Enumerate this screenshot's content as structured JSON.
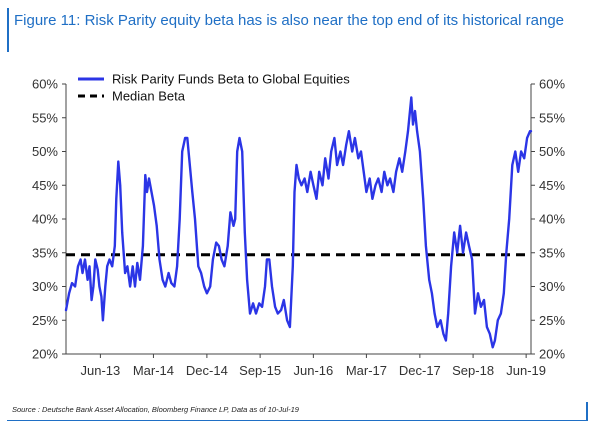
{
  "figure": {
    "title": "Figure 11: Risk Parity equity beta has is also near the top end of its historical range",
    "source": "Source : Deutsche Bank Asset Allocation, Bloomberg Finance LP, Data as of 10-Jul-19"
  },
  "colors": {
    "accent": "#1f6fc5",
    "series_line": "#2b35e6",
    "median_line": "#000000"
  },
  "chart_data": {
    "type": "line",
    "title": "",
    "xlabel": "",
    "ylabel": "",
    "x_ticks": [
      "Jun-13",
      "Mar-14",
      "Dec-14",
      "Sep-15",
      "Jun-16",
      "Mar-17",
      "Dec-17",
      "Sep-18",
      "Jun-19"
    ],
    "y_ticks": [
      "20%",
      "25%",
      "30%",
      "35%",
      "40%",
      "45%",
      "50%",
      "55%",
      "60%"
    ],
    "ylim": [
      0.2,
      0.6
    ],
    "xlim": [
      "2012-12-20",
      "2019-07-10"
    ],
    "left_axis": true,
    "right_axis": true,
    "grid": false,
    "legend_position": "top-left",
    "series": [
      {
        "name": "Risk Parity Funds Beta to Global Equities",
        "style": "solid",
        "points": [
          [
            "2012-12-20",
            0.265
          ],
          [
            "2013-01-05",
            0.29
          ],
          [
            "2013-01-20",
            0.305
          ],
          [
            "2013-02-05",
            0.3
          ],
          [
            "2013-02-20",
            0.33
          ],
          [
            "2013-03-05",
            0.34
          ],
          [
            "2013-03-15",
            0.32
          ],
          [
            "2013-03-28",
            0.34
          ],
          [
            "2013-04-10",
            0.31
          ],
          [
            "2013-04-20",
            0.33
          ],
          [
            "2013-05-01",
            0.28
          ],
          [
            "2013-05-10",
            0.3
          ],
          [
            "2013-05-20",
            0.34
          ],
          [
            "2013-06-01",
            0.325
          ],
          [
            "2013-06-10",
            0.3
          ],
          [
            "2013-06-20",
            0.285
          ],
          [
            "2013-06-28",
            0.25
          ],
          [
            "2013-07-10",
            0.3
          ],
          [
            "2013-07-20",
            0.33
          ],
          [
            "2013-08-01",
            0.34
          ],
          [
            "2013-08-15",
            0.33
          ],
          [
            "2013-08-28",
            0.36
          ],
          [
            "2013-09-05",
            0.43
          ],
          [
            "2013-09-15",
            0.485
          ],
          [
            "2013-09-25",
            0.45
          ],
          [
            "2013-10-05",
            0.38
          ],
          [
            "2013-10-20",
            0.32
          ],
          [
            "2013-11-01",
            0.33
          ],
          [
            "2013-11-15",
            0.3
          ],
          [
            "2013-11-28",
            0.33
          ],
          [
            "2013-12-10",
            0.3
          ],
          [
            "2013-12-22",
            0.335
          ],
          [
            "2014-01-05",
            0.31
          ],
          [
            "2014-01-20",
            0.36
          ],
          [
            "2014-02-01",
            0.465
          ],
          [
            "2014-02-10",
            0.44
          ],
          [
            "2014-02-20",
            0.46
          ],
          [
            "2014-03-05",
            0.44
          ],
          [
            "2014-03-18",
            0.42
          ],
          [
            "2014-04-01",
            0.39
          ],
          [
            "2014-04-15",
            0.34
          ],
          [
            "2014-05-01",
            0.31
          ],
          [
            "2014-05-15",
            0.3
          ],
          [
            "2014-06-01",
            0.32
          ],
          [
            "2014-06-15",
            0.305
          ],
          [
            "2014-07-01",
            0.3
          ],
          [
            "2014-07-15",
            0.33
          ],
          [
            "2014-07-28",
            0.4
          ],
          [
            "2014-08-10",
            0.5
          ],
          [
            "2014-08-25",
            0.52
          ],
          [
            "2014-09-05",
            0.52
          ],
          [
            "2014-09-15",
            0.49
          ],
          [
            "2014-10-01",
            0.44
          ],
          [
            "2014-10-15",
            0.4
          ],
          [
            "2014-11-01",
            0.33
          ],
          [
            "2014-11-15",
            0.32
          ],
          [
            "2014-12-01",
            0.3
          ],
          [
            "2014-12-15",
            0.29
          ],
          [
            "2015-01-01",
            0.3
          ],
          [
            "2015-01-15",
            0.34
          ],
          [
            "2015-02-01",
            0.365
          ],
          [
            "2015-02-15",
            0.36
          ],
          [
            "2015-03-01",
            0.34
          ],
          [
            "2015-03-15",
            0.33
          ],
          [
            "2015-04-01",
            0.36
          ],
          [
            "2015-04-15",
            0.41
          ],
          [
            "2015-05-01",
            0.39
          ],
          [
            "2015-05-10",
            0.4
          ],
          [
            "2015-05-20",
            0.5
          ],
          [
            "2015-06-01",
            0.52
          ],
          [
            "2015-06-15",
            0.5
          ],
          [
            "2015-06-28",
            0.38
          ],
          [
            "2015-07-10",
            0.31
          ],
          [
            "2015-07-25",
            0.26
          ],
          [
            "2015-08-10",
            0.275
          ],
          [
            "2015-08-25",
            0.26
          ],
          [
            "2015-09-10",
            0.275
          ],
          [
            "2015-09-25",
            0.27
          ],
          [
            "2015-10-10",
            0.3
          ],
          [
            "2015-10-20",
            0.34
          ],
          [
            "2015-11-01",
            0.34
          ],
          [
            "2015-11-15",
            0.3
          ],
          [
            "2015-12-01",
            0.27
          ],
          [
            "2015-12-15",
            0.26
          ],
          [
            "2016-01-01",
            0.265
          ],
          [
            "2016-01-15",
            0.28
          ],
          [
            "2016-02-01",
            0.25
          ],
          [
            "2016-02-15",
            0.24
          ],
          [
            "2016-03-01",
            0.33
          ],
          [
            "2016-03-10",
            0.44
          ],
          [
            "2016-03-20",
            0.48
          ],
          [
            "2016-04-01",
            0.46
          ],
          [
            "2016-04-15",
            0.45
          ],
          [
            "2016-05-01",
            0.46
          ],
          [
            "2016-05-15",
            0.44
          ],
          [
            "2016-06-01",
            0.47
          ],
          [
            "2016-06-15",
            0.45
          ],
          [
            "2016-07-01",
            0.43
          ],
          [
            "2016-07-15",
            0.47
          ],
          [
            "2016-08-01",
            0.45
          ],
          [
            "2016-08-15",
            0.49
          ],
          [
            "2016-09-01",
            0.46
          ],
          [
            "2016-09-15",
            0.5
          ],
          [
            "2016-10-01",
            0.52
          ],
          [
            "2016-10-15",
            0.48
          ],
          [
            "2016-11-01",
            0.5
          ],
          [
            "2016-11-15",
            0.48
          ],
          [
            "2016-12-01",
            0.51
          ],
          [
            "2016-12-15",
            0.53
          ],
          [
            "2017-01-01",
            0.5
          ],
          [
            "2017-01-15",
            0.52
          ],
          [
            "2017-02-01",
            0.49
          ],
          [
            "2017-02-15",
            0.5
          ],
          [
            "2017-03-01",
            0.47
          ],
          [
            "2017-03-15",
            0.44
          ],
          [
            "2017-04-01",
            0.46
          ],
          [
            "2017-04-15",
            0.43
          ],
          [
            "2017-05-01",
            0.45
          ],
          [
            "2017-05-15",
            0.46
          ],
          [
            "2017-06-01",
            0.44
          ],
          [
            "2017-06-15",
            0.47
          ],
          [
            "2017-07-01",
            0.45
          ],
          [
            "2017-07-15",
            0.46
          ],
          [
            "2017-08-01",
            0.44
          ],
          [
            "2017-08-15",
            0.47
          ],
          [
            "2017-09-01",
            0.49
          ],
          [
            "2017-09-15",
            0.47
          ],
          [
            "2017-10-01",
            0.5
          ],
          [
            "2017-10-15",
            0.53
          ],
          [
            "2017-11-01",
            0.58
          ],
          [
            "2017-11-10",
            0.54
          ],
          [
            "2017-11-20",
            0.56
          ],
          [
            "2017-12-01",
            0.53
          ],
          [
            "2017-12-15",
            0.5
          ],
          [
            "2018-01-01",
            0.43
          ],
          [
            "2018-01-15",
            0.36
          ],
          [
            "2018-02-01",
            0.31
          ],
          [
            "2018-02-15",
            0.29
          ],
          [
            "2018-03-01",
            0.26
          ],
          [
            "2018-03-15",
            0.24
          ],
          [
            "2018-04-01",
            0.25
          ],
          [
            "2018-04-15",
            0.23
          ],
          [
            "2018-04-28",
            0.22
          ],
          [
            "2018-05-10",
            0.26
          ],
          [
            "2018-05-25",
            0.33
          ],
          [
            "2018-06-10",
            0.38
          ],
          [
            "2018-06-25",
            0.35
          ],
          [
            "2018-07-10",
            0.39
          ],
          [
            "2018-07-25",
            0.35
          ],
          [
            "2018-08-10",
            0.38
          ],
          [
            "2018-08-25",
            0.36
          ],
          [
            "2018-09-10",
            0.34
          ],
          [
            "2018-09-25",
            0.26
          ],
          [
            "2018-10-10",
            0.29
          ],
          [
            "2018-10-25",
            0.27
          ],
          [
            "2018-11-10",
            0.28
          ],
          [
            "2018-11-25",
            0.24
          ],
          [
            "2018-12-10",
            0.23
          ],
          [
            "2018-12-25",
            0.21
          ],
          [
            "2019-01-05",
            0.22
          ],
          [
            "2019-01-20",
            0.25
          ],
          [
            "2019-02-05",
            0.26
          ],
          [
            "2019-02-20",
            0.29
          ],
          [
            "2019-03-05",
            0.35
          ],
          [
            "2019-03-20",
            0.4
          ],
          [
            "2019-04-05",
            0.48
          ],
          [
            "2019-04-20",
            0.5
          ],
          [
            "2019-05-05",
            0.47
          ],
          [
            "2019-05-20",
            0.5
          ],
          [
            "2019-06-05",
            0.49
          ],
          [
            "2019-06-20",
            0.52
          ],
          [
            "2019-07-05",
            0.53
          ],
          [
            "2019-07-10",
            0.53
          ]
        ]
      },
      {
        "name": "Median Beta",
        "style": "dashed",
        "constant": 0.347
      }
    ]
  }
}
